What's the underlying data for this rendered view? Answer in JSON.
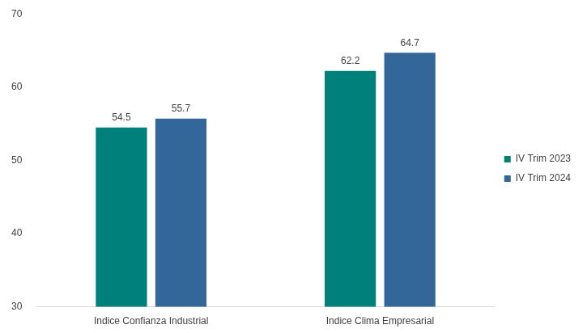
{
  "chart_data": {
    "type": "bar",
    "categories": [
      "Indice Confianza Industrial",
      "Indice Clima Empresarial"
    ],
    "series": [
      {
        "name": "IV Trim 2023",
        "color": "#00807b",
        "values": [
          54.5,
          62.2
        ]
      },
      {
        "name": "IV Trim 2024",
        "color": "#336699",
        "values": [
          55.7,
          64.7
        ]
      }
    ],
    "ylim": [
      30,
      70
    ],
    "yticks": [
      30,
      40,
      50,
      60,
      70
    ],
    "grid": false,
    "legend": "right",
    "data_labels": true
  }
}
